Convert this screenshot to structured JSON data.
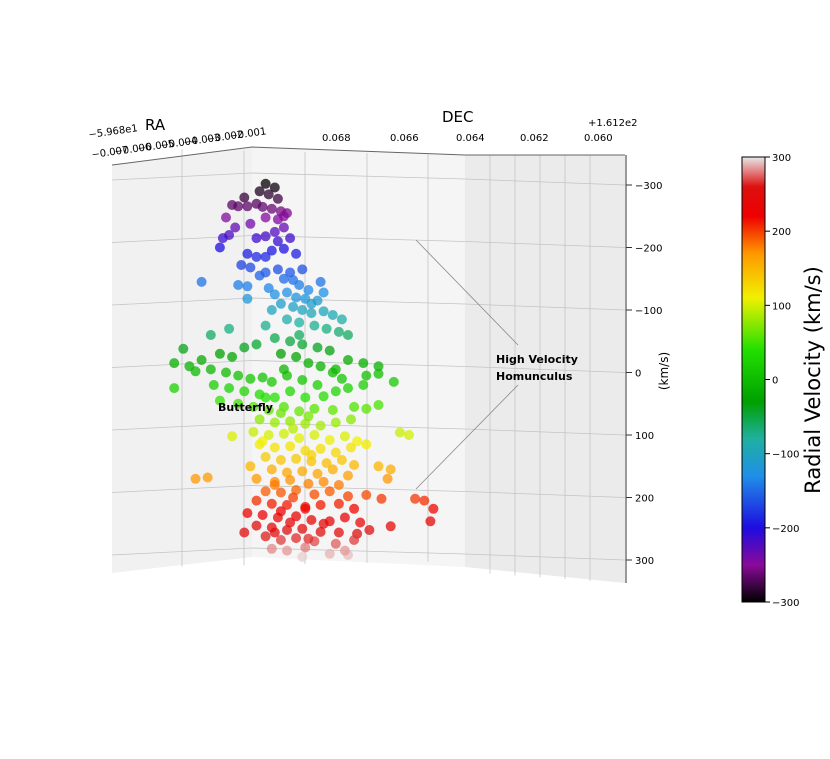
{
  "chart_data": {
    "type": "scatter",
    "view": "3d",
    "axes": {
      "ra": {
        "label": "RA",
        "offset": "−5.968e1",
        "ticks": [
          "−0.007",
          "−0.006",
          "−0.005",
          "−0.004",
          "−0.003",
          "−0.002",
          "−0.001"
        ]
      },
      "dec": {
        "label": "DEC",
        "offset": "+1.612e2",
        "ticks": [
          "0.068",
          "0.066",
          "0.064",
          "0.062",
          "0.060"
        ]
      },
      "v": {
        "label": "(km/s)",
        "ticks": [
          "−300",
          "−200",
          "−100",
          "0",
          "100",
          "200",
          "300"
        ],
        "range": [
          -300,
          300
        ]
      }
    },
    "colorbar": {
      "label": "Radial Velocity (km/s)",
      "range": [
        -300,
        300
      ],
      "ticks": [
        "300",
        "200",
        "100",
        "0",
        "−100",
        "−200",
        "−300"
      ],
      "stops": [
        {
          "v": -300,
          "color": "#000000"
        },
        {
          "v": -250,
          "color": "#8a0a9a"
        },
        {
          "v": -200,
          "color": "#1e0ce0"
        },
        {
          "v": -130,
          "color": "#1f8fe8"
        },
        {
          "v": -80,
          "color": "#1fb0a0"
        },
        {
          "v": -30,
          "color": "#00a000"
        },
        {
          "v": 40,
          "color": "#22e000"
        },
        {
          "v": 110,
          "color": "#f0f000"
        },
        {
          "v": 170,
          "color": "#ff9800"
        },
        {
          "v": 220,
          "color": "#ee0000"
        },
        {
          "v": 260,
          "color": "#dd1010"
        },
        {
          "v": 300,
          "color": "#e8e8e8"
        }
      ]
    },
    "annotations": [
      {
        "text": "High Velocity",
        "line2": "Homunculus"
      },
      {
        "text": "Butterfly"
      }
    ],
    "points": [
      [
        0.33,
        -302
      ],
      [
        0.36,
        -296
      ],
      [
        0.31,
        -290
      ],
      [
        0.26,
        -280
      ],
      [
        0.34,
        -285
      ],
      [
        0.37,
        -278
      ],
      [
        0.3,
        -270
      ],
      [
        0.32,
        -265
      ],
      [
        0.35,
        -262
      ],
      [
        0.38,
        -258
      ],
      [
        0.27,
        -266
      ],
      [
        0.22,
        -268
      ],
      [
        0.24,
        -266
      ],
      [
        0.4,
        -255
      ],
      [
        0.37,
        -245
      ],
      [
        0.39,
        -250
      ],
      [
        0.33,
        -248
      ],
      [
        0.2,
        -248
      ],
      [
        0.23,
        -232
      ],
      [
        0.28,
        -238
      ],
      [
        0.36,
        -225
      ],
      [
        0.39,
        -232
      ],
      [
        0.3,
        -215
      ],
      [
        0.33,
        -218
      ],
      [
        0.21,
        -220
      ],
      [
        0.19,
        -215
      ],
      [
        0.37,
        -210
      ],
      [
        0.41,
        -215
      ],
      [
        0.35,
        -195
      ],
      [
        0.39,
        -198
      ],
      [
        0.27,
        -190
      ],
      [
        0.3,
        -185
      ],
      [
        0.18,
        -200
      ],
      [
        0.33,
        -185
      ],
      [
        0.43,
        -190
      ],
      [
        0.25,
        -172
      ],
      [
        0.28,
        -168
      ],
      [
        0.33,
        -160
      ],
      [
        0.37,
        -165
      ],
      [
        0.41,
        -160
      ],
      [
        0.45,
        -165
      ],
      [
        0.31,
        -155
      ],
      [
        0.39,
        -150
      ],
      [
        0.42,
        -148
      ],
      [
        0.12,
        -145
      ],
      [
        0.24,
        -140
      ],
      [
        0.27,
        -138
      ],
      [
        0.34,
        -135
      ],
      [
        0.44,
        -140
      ],
      [
        0.47,
        -132
      ],
      [
        0.36,
        -125
      ],
      [
        0.4,
        -128
      ],
      [
        0.43,
        -120
      ],
      [
        0.46,
        -118
      ],
      [
        0.5,
        -115
      ],
      [
        0.38,
        -110
      ],
      [
        0.42,
        -105
      ],
      [
        0.45,
        -100
      ],
      [
        0.48,
        -95
      ],
      [
        0.52,
        -98
      ],
      [
        0.35,
        -100
      ],
      [
        0.55,
        -92
      ],
      [
        0.58,
        -85
      ],
      [
        0.4,
        -85
      ],
      [
        0.44,
        -80
      ],
      [
        0.49,
        -75
      ],
      [
        0.53,
        -70
      ],
      [
        0.57,
        -65
      ],
      [
        0.33,
        -75
      ],
      [
        0.6,
        -60
      ],
      [
        0.15,
        -60
      ],
      [
        0.21,
        -70
      ],
      [
        0.36,
        -55
      ],
      [
        0.41,
        -50
      ],
      [
        0.45,
        -45
      ],
      [
        0.5,
        -40
      ],
      [
        0.54,
        -35
      ],
      [
        0.3,
        -45
      ],
      [
        0.26,
        -40
      ],
      [
        0.06,
        -38
      ],
      [
        0.12,
        -20
      ],
      [
        0.18,
        -30
      ],
      [
        0.22,
        -25
      ],
      [
        0.38,
        -30
      ],
      [
        0.43,
        -25
      ],
      [
        0.47,
        -15
      ],
      [
        0.51,
        -10
      ],
      [
        0.56,
        -5
      ],
      [
        0.6,
        -20
      ],
      [
        0.65,
        -15
      ],
      [
        0.7,
        -10
      ],
      [
        0.03,
        -15
      ],
      [
        0.08,
        -10
      ],
      [
        0.1,
        -2
      ],
      [
        0.15,
        -5
      ],
      [
        0.2,
        0
      ],
      [
        0.24,
        5
      ],
      [
        0.28,
        10
      ],
      [
        0.32,
        8
      ],
      [
        0.35,
        15
      ],
      [
        0.4,
        5
      ],
      [
        0.45,
        12
      ],
      [
        0.5,
        20
      ],
      [
        0.55,
        0
      ],
      [
        0.58,
        10
      ],
      [
        0.66,
        5
      ],
      [
        0.7,
        2
      ],
      [
        0.16,
        20
      ],
      [
        0.21,
        25
      ],
      [
        0.26,
        30
      ],
      [
        0.31,
        35
      ],
      [
        0.36,
        40
      ],
      [
        0.41,
        30
      ],
      [
        0.46,
        40
      ],
      [
        0.52,
        38
      ],
      [
        0.56,
        30
      ],
      [
        0.6,
        25
      ],
      [
        0.65,
        20
      ],
      [
        0.75,
        15
      ],
      [
        0.03,
        25
      ],
      [
        0.18,
        45
      ],
      [
        0.24,
        50
      ],
      [
        0.29,
        55
      ],
      [
        0.34,
        60
      ],
      [
        0.39,
        55
      ],
      [
        0.44,
        62
      ],
      [
        0.49,
        58
      ],
      [
        0.55,
        60
      ],
      [
        0.62,
        55
      ],
      [
        0.66,
        58
      ],
      [
        0.7,
        52
      ],
      [
        0.31,
        75
      ],
      [
        0.36,
        80
      ],
      [
        0.41,
        78
      ],
      [
        0.46,
        82
      ],
      [
        0.51,
        85
      ],
      [
        0.56,
        80
      ],
      [
        0.61,
        75
      ],
      [
        0.29,
        95
      ],
      [
        0.34,
        100
      ],
      [
        0.39,
        98
      ],
      [
        0.44,
        105
      ],
      [
        0.49,
        100
      ],
      [
        0.54,
        108
      ],
      [
        0.59,
        102
      ],
      [
        0.63,
        110
      ],
      [
        0.77,
        96
      ],
      [
        0.8,
        100
      ],
      [
        0.22,
        102
      ],
      [
        0.31,
        115
      ],
      [
        0.36,
        120
      ],
      [
        0.41,
        118
      ],
      [
        0.46,
        125
      ],
      [
        0.51,
        122
      ],
      [
        0.56,
        128
      ],
      [
        0.61,
        120
      ],
      [
        0.66,
        115
      ],
      [
        0.33,
        135
      ],
      [
        0.38,
        140
      ],
      [
        0.43,
        138
      ],
      [
        0.48,
        142
      ],
      [
        0.53,
        145
      ],
      [
        0.58,
        140
      ],
      [
        0.62,
        148
      ],
      [
        0.28,
        150
      ],
      [
        0.35,
        155
      ],
      [
        0.4,
        160
      ],
      [
        0.45,
        158
      ],
      [
        0.5,
        162
      ],
      [
        0.55,
        155
      ],
      [
        0.6,
        165
      ],
      [
        0.7,
        150
      ],
      [
        0.74,
        155
      ],
      [
        0.3,
        170
      ],
      [
        0.36,
        175
      ],
      [
        0.41,
        172
      ],
      [
        0.47,
        178
      ],
      [
        0.52,
        175
      ],
      [
        0.57,
        180
      ],
      [
        0.1,
        170
      ],
      [
        0.14,
        168
      ],
      [
        0.73,
        170
      ],
      [
        0.33,
        190
      ],
      [
        0.38,
        192
      ],
      [
        0.43,
        188
      ],
      [
        0.49,
        195
      ],
      [
        0.54,
        190
      ],
      [
        0.6,
        198
      ],
      [
        0.66,
        196
      ],
      [
        0.3,
        205
      ],
      [
        0.35,
        210
      ],
      [
        0.4,
        212
      ],
      [
        0.46,
        215
      ],
      [
        0.51,
        212
      ],
      [
        0.57,
        210
      ],
      [
        0.62,
        218
      ],
      [
        0.71,
        202
      ],
      [
        0.82,
        202
      ],
      [
        0.85,
        205
      ],
      [
        0.88,
        218
      ],
      [
        0.27,
        225
      ],
      [
        0.32,
        228
      ],
      [
        0.37,
        232
      ],
      [
        0.43,
        230
      ],
      [
        0.48,
        236
      ],
      [
        0.54,
        238
      ],
      [
        0.59,
        232
      ],
      [
        0.64,
        240
      ],
      [
        0.3,
        245
      ],
      [
        0.35,
        248
      ],
      [
        0.4,
        252
      ],
      [
        0.45,
        250
      ],
      [
        0.51,
        255
      ],
      [
        0.57,
        256
      ],
      [
        0.63,
        258
      ],
      [
        0.67,
        252
      ],
      [
        0.74,
        246
      ],
      [
        0.87,
        238
      ],
      [
        0.33,
        262
      ],
      [
        0.38,
        268
      ],
      [
        0.43,
        265
      ],
      [
        0.49,
        270
      ],
      [
        0.56,
        274
      ],
      [
        0.62,
        268
      ],
      [
        0.35,
        282
      ],
      [
        0.4,
        285
      ],
      [
        0.46,
        280
      ],
      [
        0.54,
        290
      ],
      [
        0.6,
        292
      ],
      [
        0.45,
        295
      ],
      [
        0.59,
        285
      ],
      [
        0.26,
        256
      ],
      [
        0.47,
        266
      ],
      [
        0.52,
        242
      ],
      [
        0.36,
        256
      ],
      [
        0.41,
        240
      ],
      [
        0.42,
        90
      ],
      [
        0.47,
        70
      ],
      [
        0.38,
        65
      ],
      [
        0.33,
        40
      ],
      [
        0.39,
        -5
      ],
      [
        0.44,
        -60
      ],
      [
        0.48,
        -110
      ],
      [
        0.52,
        -128
      ],
      [
        0.36,
        180
      ],
      [
        0.42,
        200
      ],
      [
        0.46,
        218
      ],
      [
        0.38,
        222
      ],
      [
        0.32,
        110
      ],
      [
        0.48,
        132
      ],
      [
        0.27,
        -118
      ],
      [
        0.51,
        -145
      ]
    ]
  }
}
